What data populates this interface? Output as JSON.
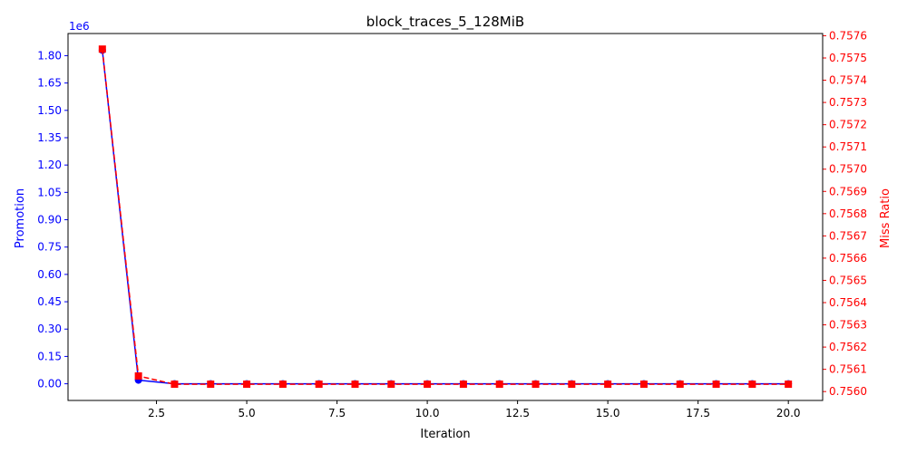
{
  "chart_data": {
    "type": "line",
    "title": "block_traces_5_128MiB",
    "xlabel": "Iteration",
    "ylabel_left": "Promotion",
    "ylabel_right": "Miss Ratio",
    "left_offset_text": "1e6",
    "x": [
      1,
      2,
      3,
      4,
      5,
      6,
      7,
      8,
      9,
      10,
      11,
      12,
      13,
      14,
      15,
      16,
      17,
      18,
      19,
      20
    ],
    "xlim": [
      0.05,
      20.95
    ],
    "x_ticks": [
      2.5,
      5.0,
      7.5,
      10.0,
      12.5,
      15.0,
      17.5,
      20.0
    ],
    "x_tick_labels": [
      "2.5",
      "5.0",
      "7.5",
      "10.0",
      "12.5",
      "15.0",
      "17.5",
      "20.0"
    ],
    "left_axis": {
      "color": "#0000ff",
      "ylim": [
        -0.0915,
        1.9215
      ],
      "ticks": [
        0.0,
        0.15,
        0.3,
        0.45,
        0.6,
        0.75,
        0.9,
        1.05,
        1.2,
        1.35,
        1.5,
        1.65,
        1.8
      ],
      "tick_labels": [
        "0.00",
        "0.15",
        "0.30",
        "0.45",
        "0.60",
        "0.75",
        "0.90",
        "1.05",
        "1.20",
        "1.35",
        "1.50",
        "1.65",
        "1.80"
      ]
    },
    "right_axis": {
      "color": "#ff0000",
      "ylim": [
        0.75596,
        0.75761
      ],
      "ticks": [
        0.756,
        0.7561,
        0.7562,
        0.7563,
        0.7564,
        0.7565,
        0.7566,
        0.7567,
        0.7568,
        0.7569,
        0.757,
        0.7571,
        0.7572,
        0.7573,
        0.7574,
        0.7575,
        0.7576
      ],
      "tick_labels": [
        "0.7560",
        "0.7561",
        "0.7562",
        "0.7563",
        "0.7564",
        "0.7565",
        "0.7566",
        "0.7567",
        "0.7568",
        "0.7569",
        "0.7570",
        "0.7571",
        "0.7572",
        "0.7573",
        "0.7574",
        "0.7575",
        "0.7576"
      ]
    },
    "series": [
      {
        "name": "Promotion",
        "axis": "left",
        "color": "#0000ff",
        "marker": "circle",
        "line": "solid",
        "values": [
          1.83,
          0.02,
          0.0,
          0.0,
          0.0,
          0.0,
          0.0,
          0.0,
          0.0,
          0.0,
          0.0,
          0.0,
          0.0,
          0.0,
          0.0,
          0.0,
          0.0,
          0.0,
          0.0,
          0.0
        ]
      },
      {
        "name": "Miss Ratio",
        "axis": "right",
        "color": "#ff0000",
        "marker": "square",
        "line": "dashed",
        "values": [
          0.75754,
          0.75607,
          0.756033,
          0.756033,
          0.756033,
          0.756033,
          0.756033,
          0.756033,
          0.756033,
          0.756033,
          0.756033,
          0.756033,
          0.756033,
          0.756033,
          0.756033,
          0.756033,
          0.756033,
          0.756033,
          0.756033,
          0.756033
        ]
      }
    ],
    "grid": false,
    "legend": "none"
  }
}
